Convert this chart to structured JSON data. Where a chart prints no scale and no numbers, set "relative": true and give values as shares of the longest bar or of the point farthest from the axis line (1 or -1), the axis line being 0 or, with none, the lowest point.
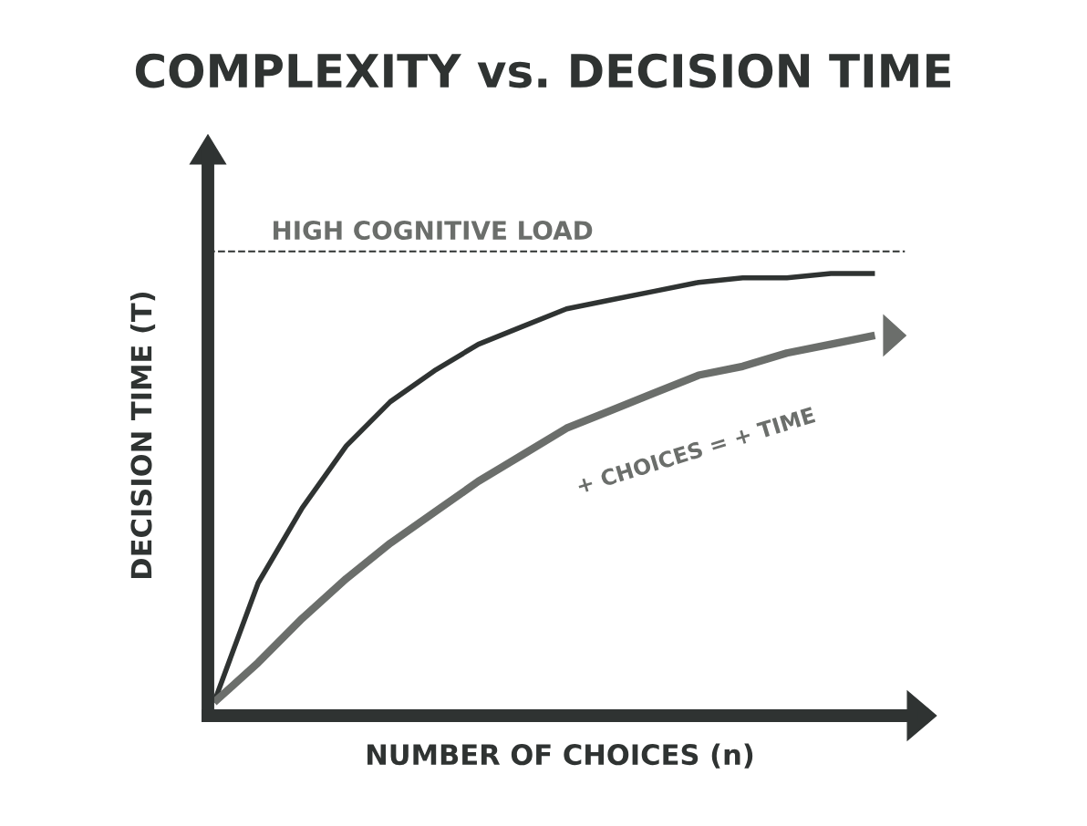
{
  "chart_data": {
    "type": "line",
    "title": "COMPLEXITY vs. DECISION TIME",
    "xlabel": "NUMBER OF CHOICES (n)",
    "ylabel": "DECISION TIME (T)",
    "relative": true,
    "tick_labels": false,
    "marker": "none",
    "line_style": "solid",
    "categories": [
      null,
      null,
      null,
      null,
      null,
      null,
      null,
      null,
      null,
      null,
      null,
      null,
      null,
      null,
      null,
      null
    ],
    "series": [
      {
        "color": "#2f3332",
        "values": [
          0.03,
          0.3,
          0.47,
          0.61,
          0.71,
          0.78,
          0.84,
          0.88,
          0.92,
          0.94,
          0.96,
          0.98,
          0.99,
          0.99,
          1.0,
          1.0
        ]
      },
      {
        "color": "#6b6e6b",
        "values": [
          0.03,
          0.12,
          0.22,
          0.31,
          0.39,
          0.46,
          0.53,
          0.59,
          0.65,
          0.69,
          0.73,
          0.77,
          0.79,
          0.82,
          0.84,
          0.86
        ]
      }
    ],
    "ref_lines": [
      {
        "axis": "y",
        "value": 1.05,
        "label": "HIGH COGNITIVE LOAD",
        "color": "#2f3332",
        "line_style": "dashed"
      }
    ],
    "annotations": [
      "+ CHOICES = + TIME"
    ]
  }
}
